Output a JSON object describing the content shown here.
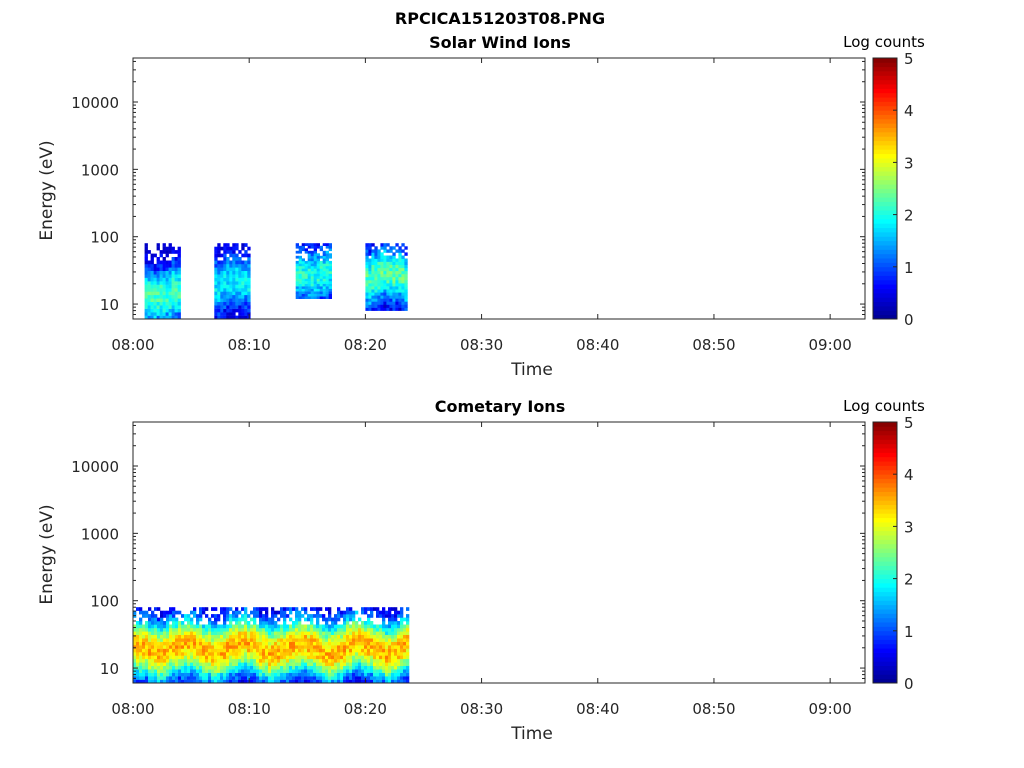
{
  "figure_title": "RPCICA151203T08.PNG",
  "colormap": [
    "#00008f",
    "#0000ff",
    "#0080ff",
    "#00ffff",
    "#80ff80",
    "#ffff00",
    "#ff8000",
    "#ff0000",
    "#800000"
  ],
  "chart_data": [
    {
      "type": "heatmap",
      "title": "Solar Wind Ions",
      "xlabel": "Time",
      "ylabel": "Energy (eV)",
      "x_ticks": [
        "08:00",
        "08:10",
        "08:20",
        "08:30",
        "08:40",
        "08:50",
        "09:00"
      ],
      "y_ticks": [
        "10",
        "100",
        "1000",
        "10000"
      ],
      "y_scale": "log",
      "ylim": [
        6,
        45000
      ],
      "xlim": [
        "08:00",
        "09:03"
      ],
      "colorbar": {
        "title": "Log counts",
        "ticks": [
          "0",
          "1",
          "2",
          "3",
          "4",
          "5"
        ],
        "range": [
          0,
          5
        ]
      },
      "data_segments": [
        {
          "start": "08:01",
          "end": "08:04",
          "e_min": 6,
          "e_max": 80,
          "peak_e": 15,
          "peak_log": 2.2
        },
        {
          "start": "08:07",
          "end": "08:10",
          "e_min": 6,
          "e_max": 80,
          "peak_e": 20,
          "peak_log": 1.8
        },
        {
          "start": "08:14",
          "end": "08:17",
          "e_min": 12,
          "e_max": 80,
          "peak_e": 30,
          "peak_log": 2.0
        },
        {
          "start": "08:20",
          "end": "08:23.5",
          "e_min": 8,
          "e_max": 80,
          "peak_e": 25,
          "peak_log": 2.3
        }
      ]
    },
    {
      "type": "heatmap",
      "title": "Cometary Ions",
      "xlabel": "Time",
      "ylabel": "Energy (eV)",
      "x_ticks": [
        "08:00",
        "08:10",
        "08:20",
        "08:30",
        "08:40",
        "08:50",
        "09:00"
      ],
      "y_ticks": [
        "10",
        "100",
        "1000",
        "10000"
      ],
      "y_scale": "log",
      "ylim": [
        6,
        45000
      ],
      "xlim": [
        "08:00",
        "09:03"
      ],
      "colorbar": {
        "title": "Log counts",
        "ticks": [
          "0",
          "1",
          "2",
          "3",
          "4",
          "5"
        ],
        "range": [
          0,
          5
        ]
      },
      "data_segments": [
        {
          "start": "08:00",
          "end": "08:23.5",
          "e_min": 6,
          "e_max": 80,
          "peak_e": 20,
          "peak_log": 3.5
        }
      ]
    }
  ]
}
